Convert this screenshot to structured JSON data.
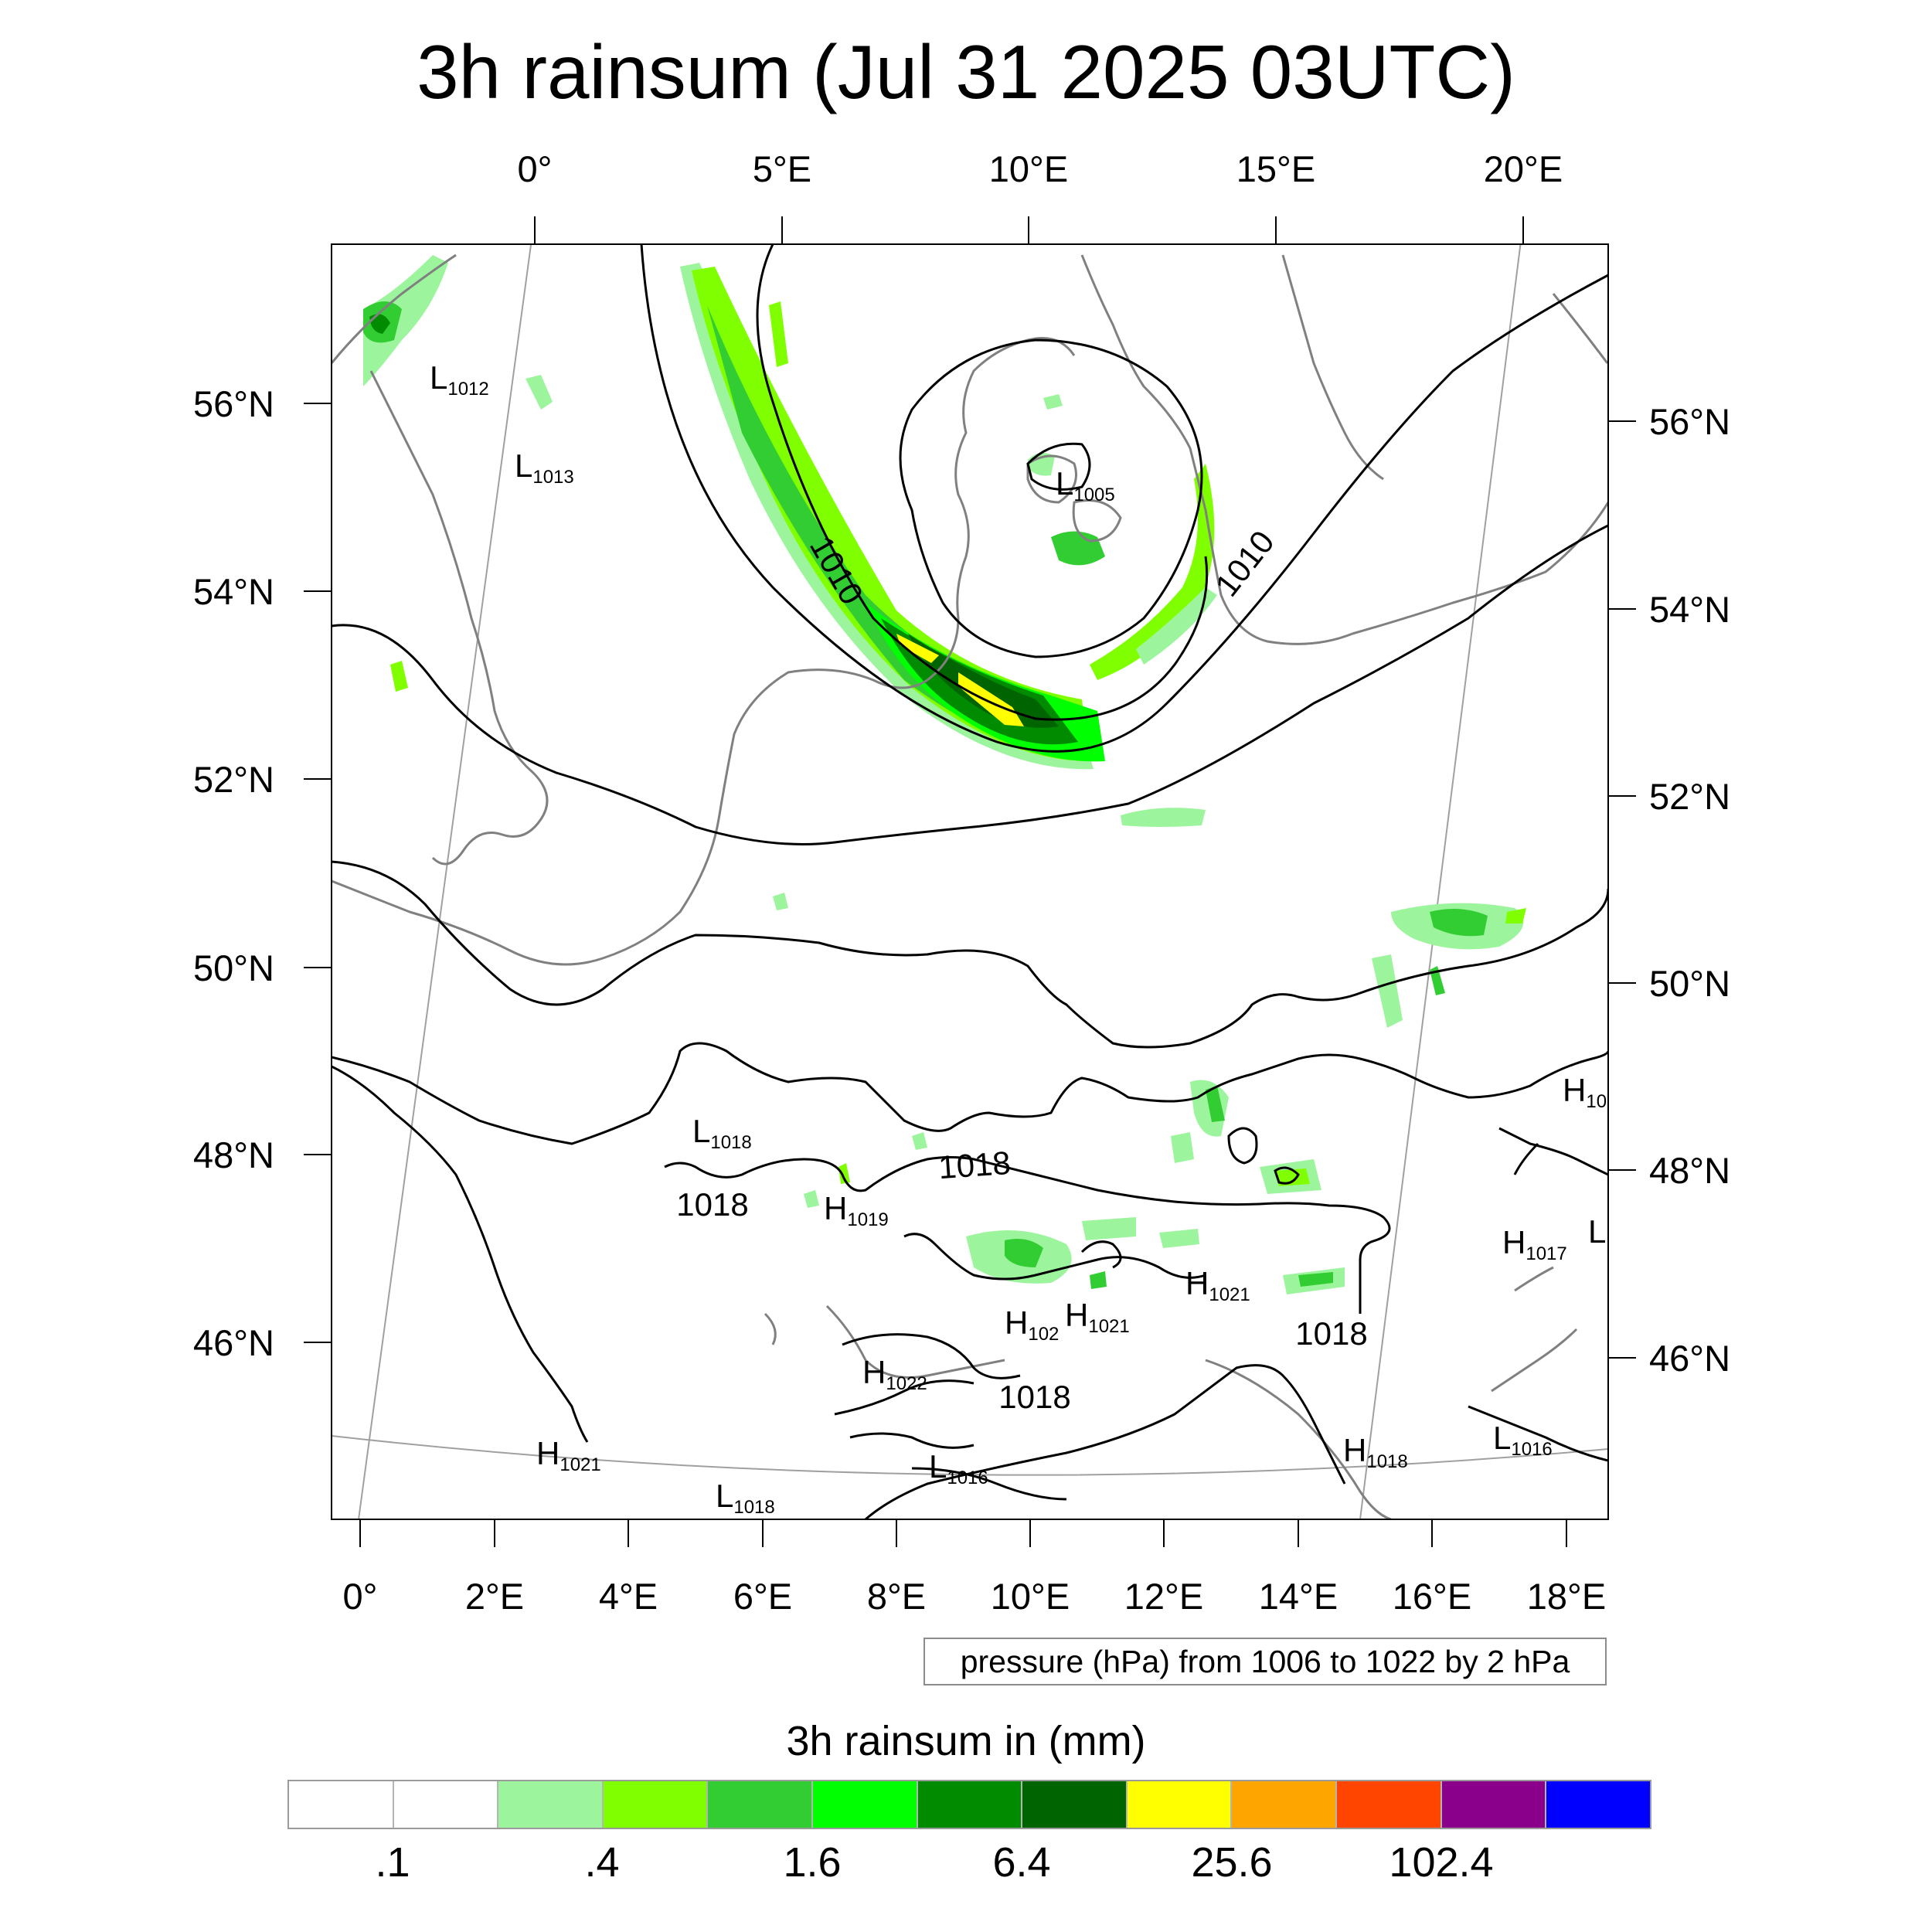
{
  "title": "3h rainsum (Jul 31 2025 03UTC)",
  "map": {
    "projection": "conic",
    "top_lon_labels": [
      "0°",
      "5°E",
      "10°E",
      "15°E",
      "20°E"
    ],
    "bottom_lon_labels": [
      "0°",
      "2°E",
      "4°E",
      "6°E",
      "8°E",
      "10°E",
      "12°E",
      "14°E",
      "16°E",
      "18°E"
    ],
    "left_lat_labels": [
      "56°N",
      "54°N",
      "52°N",
      "50°N",
      "48°N",
      "46°N"
    ],
    "right_lat_labels": [
      "56°N",
      "54°N",
      "52°N",
      "50°N",
      "48°N",
      "46°N"
    ],
    "contour_labels": [
      "1010",
      "1010",
      "1018",
      "1018",
      "1018",
      "1018",
      "1018"
    ],
    "pressure_centers": [
      {
        "type": "L",
        "value": "1012"
      },
      {
        "type": "L",
        "value": "1013"
      },
      {
        "type": "L",
        "value": "1005"
      },
      {
        "type": "L",
        "value": "1018"
      },
      {
        "type": "H",
        "value": "1019"
      },
      {
        "type": "H",
        "value": "1021"
      },
      {
        "type": "H",
        "value": "1021"
      },
      {
        "type": "H",
        "value": "1022"
      },
      {
        "type": "H",
        "value": "1021"
      },
      {
        "type": "L",
        "value": "1018"
      },
      {
        "type": "L",
        "value": "1016"
      },
      {
        "type": "H",
        "value": "1018"
      },
      {
        "type": "L",
        "value": "1016"
      },
      {
        "type": "H",
        "value": "1017"
      }
    ],
    "partial_labels": {
      "h_north": "H",
      "h_north_sub": "10",
      "l_east": "L",
      "h_mid": "H",
      "h_mid_sub": "102"
    },
    "colors": {
      "coastline": "#808080",
      "contour": "#000000",
      "grid": "#a0a0a0"
    }
  },
  "contour_info": "pressure (hPa) from 1006 to 1022 by 2 hPa",
  "colorbar": {
    "title": "3h rainsum in (mm)",
    "colors": [
      "#ffffff",
      "#ffffff",
      "#9cf59c",
      "#80ff00",
      "#32cd32",
      "#00ff00",
      "#008b00",
      "#006400",
      "#ffff00",
      "#ffa500",
      "#ff4500",
      "#8b008b",
      "#0000ff"
    ],
    "tick_labels": [
      ".1",
      ".4",
      "1.6",
      "6.4",
      "25.6",
      "102.4"
    ]
  }
}
